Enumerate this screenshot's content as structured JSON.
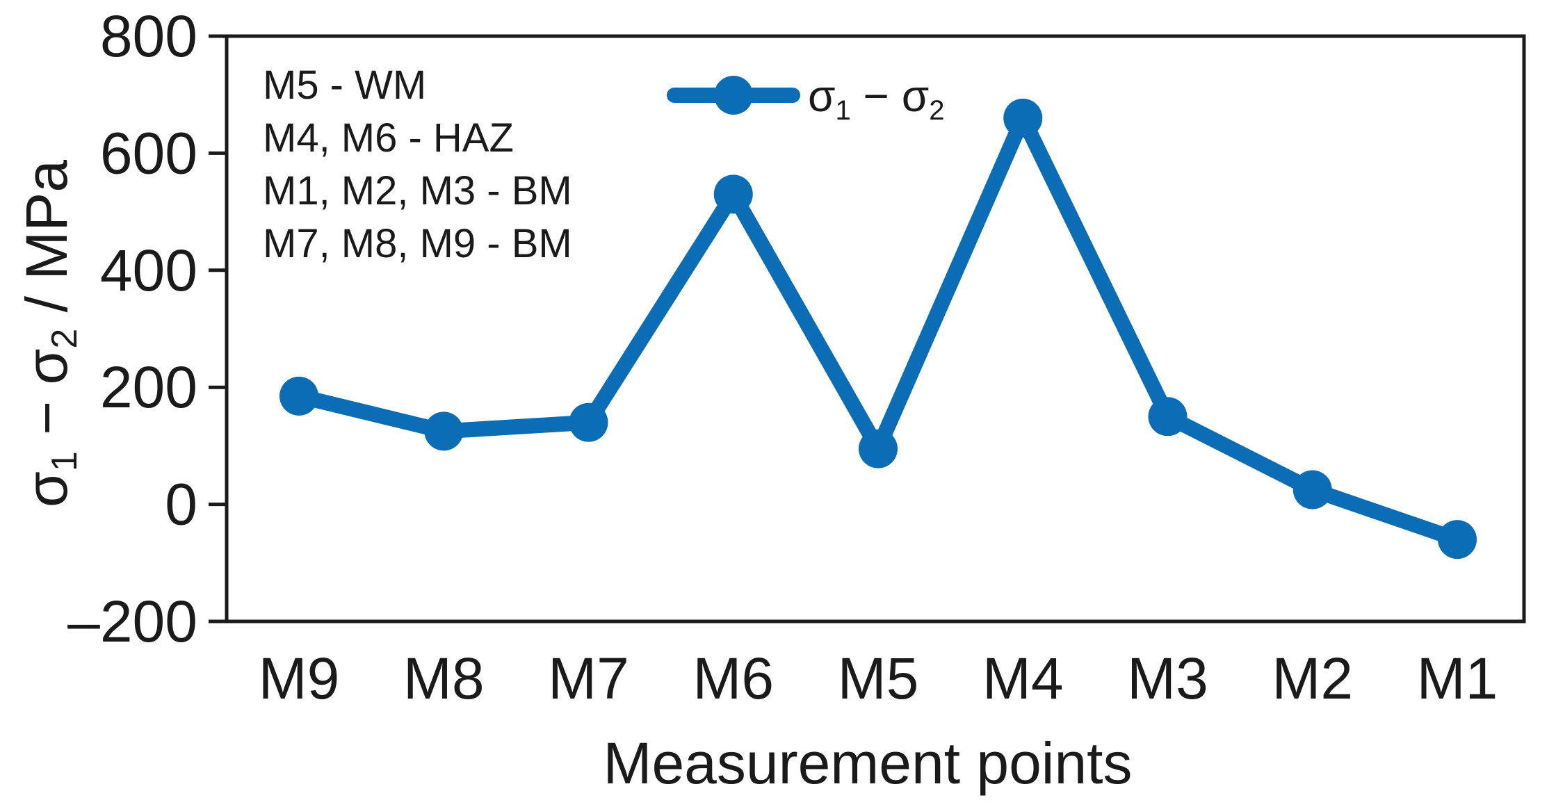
{
  "chart_data": {
    "type": "line",
    "categories": [
      "M9",
      "M8",
      "M7",
      "M6",
      "M5",
      "M4",
      "M3",
      "M2",
      "M1"
    ],
    "series": [
      {
        "name": "σ1 − σ2",
        "name_parts": {
          "sigma_a": "σ",
          "sub_a": "1",
          "minus": " − ",
          "sigma_b": "σ",
          "sub_b": "2"
        },
        "values": [
          185,
          125,
          140,
          530,
          95,
          660,
          150,
          25,
          -60
        ],
        "color": "#0a6db5"
      }
    ],
    "xlabel": "Measurement points",
    "ylabel": {
      "sigma_a": "σ",
      "sub_a": "1",
      "minus": " − ",
      "sigma_b": "σ",
      "sub_b": "2",
      "unit": " / MPa"
    },
    "ylim": [
      -200,
      800
    ],
    "yticks": [
      800,
      600,
      400,
      200,
      0,
      -200
    ],
    "ytick_labels": [
      "800",
      "600",
      "400",
      "200",
      "0",
      "–200"
    ],
    "grid": false,
    "legend_position": "top-center",
    "annotations": [
      "M5 - WM",
      "M4, M6 - HAZ",
      "M1, M2, M3 - BM",
      "M7, M8, M9 - BM"
    ]
  }
}
